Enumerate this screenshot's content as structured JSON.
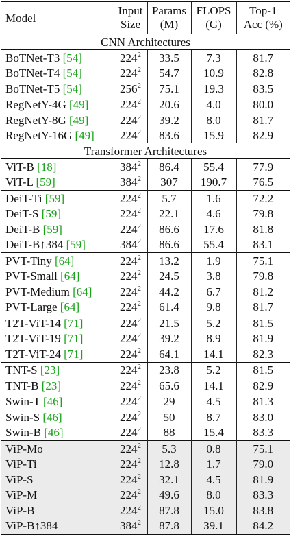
{
  "headers": {
    "model": "Model",
    "input_l1": "Input",
    "input_l2": "Size",
    "params_l1": "Params",
    "params_l2": "(M)",
    "flops_l1": "FLOPS",
    "flops_l2": "(G)",
    "top1_l1": "Top-1",
    "top1_l2": "Acc (%)"
  },
  "sections": [
    {
      "title": "CNN Architectures",
      "groups": [
        [
          {
            "model": "BoTNet-T3 ",
            "cite": "[54]",
            "size": "224",
            "params": "33.5",
            "flops": "7.3",
            "acc": "81.7"
          },
          {
            "model": "BoTNet-T4 ",
            "cite": "[54]",
            "size": "224",
            "params": "54.7",
            "flops": "10.9",
            "acc": "82.8"
          },
          {
            "model": "BoTNet-T5 ",
            "cite": "[54]",
            "size": "256",
            "params": "75.1",
            "flops": "19.3",
            "acc": "83.5"
          }
        ],
        [
          {
            "model": "RegNetY-4G ",
            "cite": "[49]",
            "size": "224",
            "params": "20.6",
            "flops": "4.0",
            "acc": "80.0"
          },
          {
            "model": "RegNetY-8G ",
            "cite": "[49]",
            "size": "224",
            "params": "39.2",
            "flops": "8.0",
            "acc": "81.7"
          },
          {
            "model": "RegNetY-16G ",
            "cite": "[49]",
            "size": "224",
            "params": "83.6",
            "flops": "15.9",
            "acc": "82.9"
          }
        ]
      ]
    },
    {
      "title": "Transformer Architectures",
      "groups": [
        [
          {
            "model": "ViT-B ",
            "cite": "[18]",
            "size": "384",
            "params": "86.4",
            "flops": "55.4",
            "acc": "77.9"
          },
          {
            "model": "ViT-L ",
            "cite": "[59]",
            "size": "384",
            "params": "307",
            "flops": "190.7",
            "acc": "76.5"
          }
        ],
        [
          {
            "model": "DeiT-Ti ",
            "cite": "[59]",
            "size": "224",
            "params": "5.7",
            "flops": "1.6",
            "acc": "72.2"
          },
          {
            "model": "DeiT-S ",
            "cite": "[59]",
            "size": "224",
            "params": "22.1",
            "flops": "4.6",
            "acc": "79.8"
          },
          {
            "model": "DeiT-B ",
            "cite": "[59]",
            "size": "224",
            "params": "86.6",
            "flops": "17.6",
            "acc": "81.8"
          },
          {
            "model": "DeiT-B↑384 ",
            "cite": "[59]",
            "size": "384",
            "params": "86.6",
            "flops": "55.4",
            "acc": "83.1"
          }
        ],
        [
          {
            "model": "PVT-Tiny ",
            "cite": "[64]",
            "size": "224",
            "params": "13.2",
            "flops": "1.9",
            "acc": "75.1"
          },
          {
            "model": "PVT-Small ",
            "cite": "[64]",
            "size": "224",
            "params": "24.5",
            "flops": "3.8",
            "acc": "79.8"
          },
          {
            "model": "PVT-Medium ",
            "cite": "[64]",
            "size": "224",
            "params": "44.2",
            "flops": "6.7",
            "acc": "81.2"
          },
          {
            "model": "PVT-Large ",
            "cite": "[64]",
            "size": "224",
            "params": "61.4",
            "flops": "9.8",
            "acc": "81.7"
          }
        ],
        [
          {
            "model": "T2T-ViT-14 ",
            "cite": "[71]",
            "size": "224",
            "params": "21.5",
            "flops": "5.2",
            "acc": "81.5"
          },
          {
            "model": "T2T-ViT-19 ",
            "cite": "[71]",
            "size": "224",
            "params": "39.2",
            "flops": "8.9",
            "acc": "81.9"
          },
          {
            "model": "T2T-ViT-24 ",
            "cite": "[71]",
            "size": "224",
            "params": "64.1",
            "flops": "14.1",
            "acc": "82.3"
          }
        ],
        [
          {
            "model": "TNT-S ",
            "cite": "[23]",
            "size": "224",
            "params": "23.8",
            "flops": "5.2",
            "acc": "81.5"
          },
          {
            "model": "TNT-B ",
            "cite": "[23]",
            "size": "224",
            "params": "65.6",
            "flops": "14.1",
            "acc": "82.9"
          }
        ],
        [
          {
            "model": "Swin-T ",
            "cite": "[46]",
            "size": "224",
            "params": "29",
            "flops": "4.5",
            "acc": "81.3"
          },
          {
            "model": "Swin-S ",
            "cite": "[46]",
            "size": "224",
            "params": "50",
            "flops": "8.7",
            "acc": "83.0"
          },
          {
            "model": "Swin-B ",
            "cite": "[46]",
            "size": "224",
            "params": "88",
            "flops": "15.4",
            "acc": "83.3"
          }
        ]
      ]
    }
  ],
  "ours": [
    {
      "model": "ViP-Mo",
      "size": "224",
      "params": "5.3",
      "flops": "0.8",
      "acc": "75.1"
    },
    {
      "model": "ViP-Ti",
      "size": "224",
      "params": "12.8",
      "flops": "1.7",
      "acc": "79.0"
    },
    {
      "model": "ViP-S",
      "size": "224",
      "params": "32.1",
      "flops": "4.5",
      "acc": "81.9"
    },
    {
      "model": "ViP-M",
      "size": "224",
      "params": "49.6",
      "flops": "8.0",
      "acc": "83.3"
    },
    {
      "model": "ViP-B",
      "size": "224",
      "params": "87.8",
      "flops": "15.0",
      "acc": "83.8"
    },
    {
      "model": "ViP-B↑384",
      "size": "384",
      "params": "87.8",
      "flops": "39.1",
      "acc": "84.2"
    }
  ],
  "size_exponent": "2",
  "colors": {
    "citation": "#1aa31a",
    "ours_row_bg": "#ebebeb",
    "rule": "#111111"
  }
}
